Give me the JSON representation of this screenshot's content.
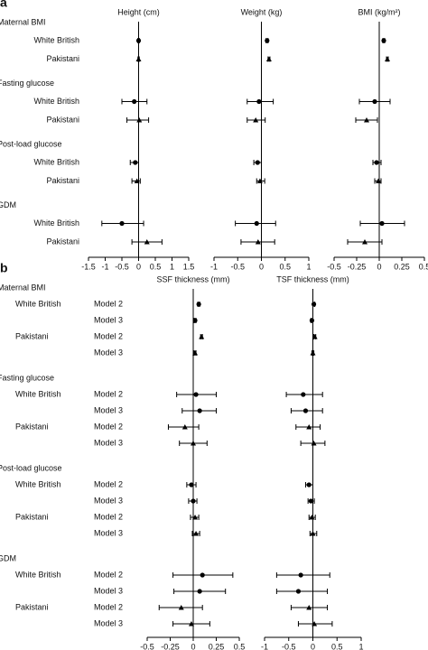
{
  "chart_data": [
    {
      "type": "forest",
      "panel": "a",
      "groups": [
        {
          "label": "Maternal BMI",
          "rows": [
            {
              "label": "White British",
              "marker": "circle"
            },
            {
              "label": "Pakistani",
              "marker": "triangle"
            }
          ]
        },
        {
          "label": "Fasting glucose",
          "rows": [
            {
              "label": "White British",
              "marker": "circle"
            },
            {
              "label": "Pakistani",
              "marker": "triangle"
            }
          ]
        },
        {
          "label": "Post-load glucose",
          "rows": [
            {
              "label": "White British",
              "marker": "circle"
            },
            {
              "label": "Pakistani",
              "marker": "triangle"
            }
          ]
        },
        {
          "label": "GDM",
          "rows": [
            {
              "label": "White British",
              "marker": "circle"
            },
            {
              "label": "Pakistani",
              "marker": "triangle"
            }
          ]
        }
      ],
      "subplots": [
        {
          "title": "Height (cm)",
          "xlim": [
            -1.5,
            1.5
          ],
          "xticks": [
            -1.5,
            -1,
            -0.5,
            0,
            0.5,
            1,
            1.5
          ],
          "values": [
            0.0,
            0.0,
            -0.13,
            0.02,
            -0.1,
            -0.05,
            -0.5,
            0.25
          ],
          "lower": [
            -0.02,
            -0.02,
            -0.5,
            -0.35,
            -0.25,
            -0.2,
            -1.1,
            -0.2
          ],
          "upper": [
            0.02,
            0.02,
            0.25,
            0.3,
            0.0,
            0.05,
            0.15,
            0.7
          ]
        },
        {
          "title": "Weight (kg)",
          "xlim": [
            -1,
            1
          ],
          "xticks": [
            -1,
            -0.5,
            0,
            0.5,
            1
          ],
          "values": [
            0.12,
            0.16,
            -0.05,
            -0.12,
            -0.08,
            -0.03,
            -0.1,
            -0.07
          ],
          "lower": [
            0.1,
            0.14,
            -0.3,
            -0.3,
            -0.16,
            -0.1,
            -0.55,
            -0.43
          ],
          "upper": [
            0.14,
            0.18,
            0.25,
            0.08,
            0.0,
            0.07,
            0.3,
            0.28
          ]
        },
        {
          "title": "BMI (kg/m²)",
          "xlim": [
            -0.5,
            0.5
          ],
          "xticks": [
            -0.5,
            -0.25,
            0,
            0.25,
            0.5
          ],
          "values": [
            0.05,
            0.09,
            -0.05,
            -0.14,
            -0.03,
            -0.01,
            0.03,
            -0.16
          ],
          "lower": [
            0.04,
            0.08,
            -0.22,
            -0.26,
            -0.07,
            -0.05,
            -0.21,
            -0.35
          ],
          "upper": [
            0.06,
            0.1,
            0.12,
            -0.02,
            0.02,
            0.02,
            0.28,
            0.03
          ]
        }
      ]
    },
    {
      "type": "forest",
      "panel": "b",
      "groups": [
        {
          "label": "Maternal BMI",
          "rows": [
            {
              "label": "White British",
              "marker": "circle",
              "models": [
                "Model 2",
                "Model 3"
              ]
            },
            {
              "label": "Pakistani",
              "marker": "triangle",
              "models": [
                "Model 2",
                "Model 3"
              ]
            }
          ]
        },
        {
          "label": "Fasting glucose",
          "rows": [
            {
              "label": "White British",
              "marker": "circle",
              "models": [
                "Model 2",
                "Model 3"
              ]
            },
            {
              "label": "Pakistani",
              "marker": "triangle",
              "models": [
                "Model 2",
                "Model 3"
              ]
            }
          ]
        },
        {
          "label": "Post-load glucose",
          "rows": [
            {
              "label": "White British",
              "marker": "circle",
              "models": [
                "Model 2",
                "Model 3"
              ]
            },
            {
              "label": "Pakistani",
              "marker": "triangle",
              "models": [
                "Model 2",
                "Model 3"
              ]
            }
          ]
        },
        {
          "label": "GDM",
          "rows": [
            {
              "label": "White British",
              "marker": "circle",
              "models": [
                "Model 2",
                "Model 3"
              ]
            },
            {
              "label": "Pakistani",
              "marker": "triangle",
              "models": [
                "Model 2",
                "Model 3"
              ]
            }
          ]
        }
      ],
      "subplots": [
        {
          "title": "SSF thickness (mm)",
          "xlim": [
            -0.5,
            0.5
          ],
          "xticks": [
            -0.5,
            -0.25,
            0,
            0.25,
            0.5
          ],
          "values": [
            0.06,
            0.02,
            0.09,
            0.02,
            0.03,
            0.07,
            -0.09,
            0.0,
            -0.02,
            0.0,
            0.02,
            0.03,
            0.1,
            0.07,
            -0.13,
            -0.02
          ],
          "lower": [
            0.05,
            0.01,
            0.08,
            0.01,
            -0.18,
            -0.12,
            -0.27,
            -0.15,
            -0.07,
            -0.05,
            -0.03,
            -0.01,
            -0.22,
            -0.21,
            -0.37,
            -0.22
          ],
          "upper": [
            0.07,
            0.03,
            0.1,
            0.03,
            0.25,
            0.25,
            0.06,
            0.15,
            0.03,
            0.04,
            0.06,
            0.07,
            0.43,
            0.35,
            0.1,
            0.18
          ]
        },
        {
          "title": "TSF thickness (mm)",
          "xlim": [
            -1,
            1
          ],
          "xticks": [
            -1,
            -0.5,
            0,
            0.5,
            1
          ],
          "values": [
            0.02,
            -0.02,
            0.04,
            0.0,
            -0.2,
            -0.15,
            -0.08,
            0.02,
            -0.08,
            -0.04,
            -0.02,
            0.0,
            -0.25,
            -0.3,
            -0.08,
            0.03
          ],
          "lower": [
            0.0,
            -0.04,
            0.02,
            -0.02,
            -0.55,
            -0.45,
            -0.35,
            -0.25,
            -0.15,
            -0.1,
            -0.08,
            -0.06,
            -0.75,
            -0.75,
            -0.45,
            -0.3
          ],
          "upper": [
            0.04,
            0.0,
            0.06,
            0.02,
            0.2,
            0.2,
            0.15,
            0.25,
            0.0,
            0.03,
            0.05,
            0.08,
            0.35,
            0.3,
            0.3,
            0.4
          ]
        }
      ]
    }
  ]
}
